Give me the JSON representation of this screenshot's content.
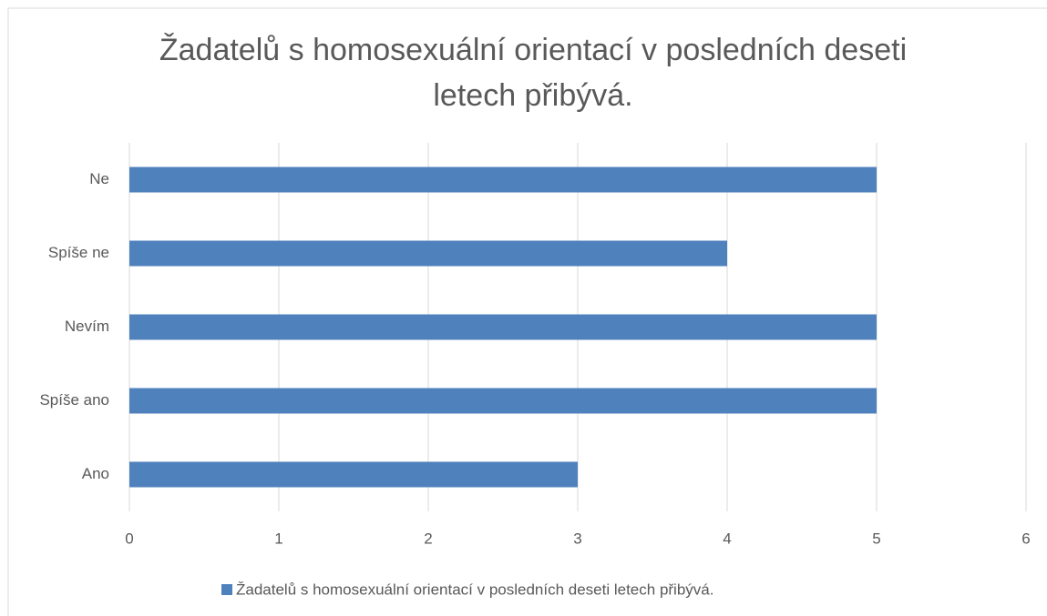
{
  "chart_data": {
    "type": "bar",
    "orientation": "horizontal",
    "title": "Žadatelů s homosexuální orientací v posledních deseti letech přibývá.",
    "categories": [
      "Ano",
      "Spíše ano",
      "Nevím",
      "Spíše ne",
      "Ne"
    ],
    "series": [
      {
        "name": "Žadatelů s homosexuální orientací v posledních deseti letech přibývá.",
        "color": "#4f81bd",
        "values": [
          3,
          5,
          5,
          4,
          5
        ]
      }
    ],
    "xlim": [
      0,
      6
    ],
    "xticks": [
      0,
      1,
      2,
      3,
      4,
      5,
      6
    ],
    "grid": true,
    "legend": "bottom"
  }
}
